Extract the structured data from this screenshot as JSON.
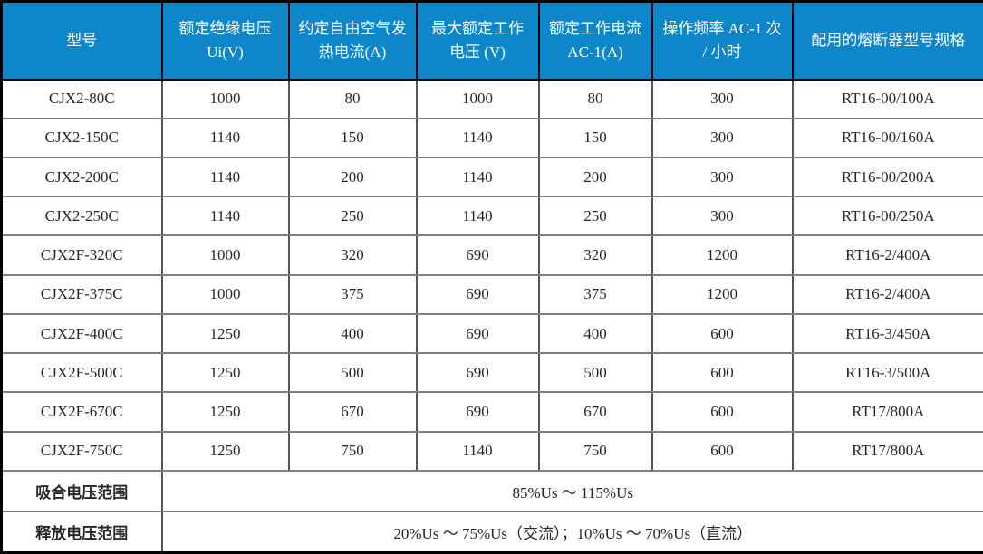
{
  "colors": {
    "header_bg": "#0e87ca",
    "header_text": "#ffffff",
    "body_text": "#262626",
    "grid_line": "#7f7f7f",
    "outer_border": "#000000"
  },
  "table": {
    "columns": [
      {
        "key": "model",
        "label": "型号"
      },
      {
        "key": "rated_insulation_voltage",
        "label": "额定绝缘电压 Ui(V)"
      },
      {
        "key": "conventional_free_air_thermal_current",
        "label": "约定自由空气发热电流(A)"
      },
      {
        "key": "max_rated_operational_voltage",
        "label": "最大额定工作电压 (V)"
      },
      {
        "key": "rated_operational_current_ac1",
        "label": "额定工作电流 AC-1(A)"
      },
      {
        "key": "operating_frequency_ac1",
        "label": "操作频率 AC-1 次 / 小时"
      },
      {
        "key": "matching_fuse_model",
        "label": "配用的熔断器型号规格"
      }
    ],
    "rows": [
      {
        "cells": [
          "CJX2-80C",
          "1000",
          "80",
          "1000",
          "80",
          "300",
          "RT16-00/100A"
        ]
      },
      {
        "cells": [
          "CJX2-150C",
          "1140",
          "150",
          "1140",
          "150",
          "300",
          "RT16-00/160A"
        ]
      },
      {
        "cells": [
          "CJX2-200C",
          "1140",
          "200",
          "1140",
          "200",
          "300",
          "RT16-00/200A"
        ]
      },
      {
        "cells": [
          "CJX2-250C",
          "1140",
          "250",
          "1140",
          "250",
          "300",
          "RT16-00/250A"
        ]
      },
      {
        "cells": [
          "CJX2F-320C",
          "1000",
          "320",
          "690",
          "320",
          "1200",
          "RT16-2/400A"
        ]
      },
      {
        "cells": [
          "CJX2F-375C",
          "1000",
          "375",
          "690",
          "375",
          "1200",
          "RT16-2/400A"
        ]
      },
      {
        "cells": [
          "CJX2F-400C",
          "1250",
          "400",
          "690",
          "400",
          "600",
          "RT16-3/450A"
        ]
      },
      {
        "cells": [
          "CJX2F-500C",
          "1250",
          "500",
          "690",
          "500",
          "600",
          "RT16-3/500A"
        ]
      },
      {
        "cells": [
          "CJX2F-670C",
          "1250",
          "670",
          "690",
          "670",
          "600",
          "RT17/800A"
        ]
      },
      {
        "cells": [
          "CJX2F-750C",
          "1250",
          "750",
          "1140",
          "750",
          "600",
          "RT17/800A"
        ]
      }
    ],
    "footer_rows": [
      {
        "label": "吸合电压范围",
        "value": "85%Us ～ 115%Us"
      },
      {
        "label": "释放电压范围",
        "value": "20%Us ～ 75%Us（交流）；10%Us ～ 70%Us（直流）"
      }
    ]
  }
}
